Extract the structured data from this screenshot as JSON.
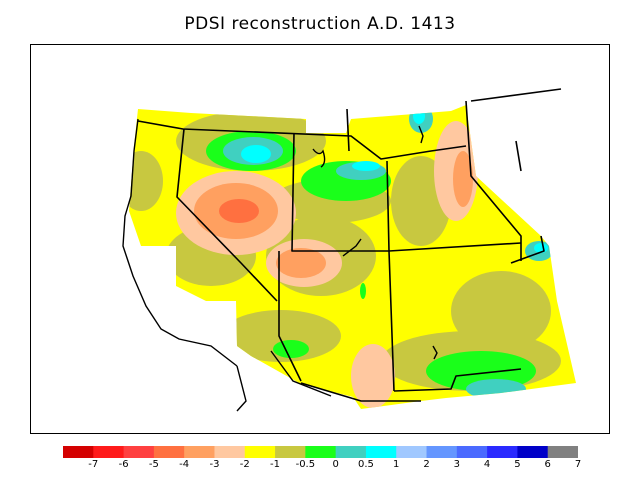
{
  "title": "PDSI reconstruction A.D. 1413",
  "legend": {
    "colors": [
      "#d40000",
      "#ff1a1a",
      "#ff4040",
      "#ff7040",
      "#ffa060",
      "#ffc8a0",
      "#ffff00",
      "#c8c840",
      "#1aff1a",
      "#40d0c0",
      "#00ffff",
      "#a0c8ff",
      "#6496ff",
      "#4a6aff",
      "#2a2aff",
      "#0000c8",
      "#808080"
    ],
    "tick_labels": [
      "-7",
      "-6",
      "-5",
      "-4",
      "-3",
      "-2",
      "-1",
      "-0.5",
      "0",
      "0.5",
      "1",
      "2",
      "3",
      "4",
      "5",
      "6",
      "7"
    ]
  },
  "map": {
    "region": "Western United States",
    "icons": [
      "state-borders",
      "coastline"
    ]
  }
}
